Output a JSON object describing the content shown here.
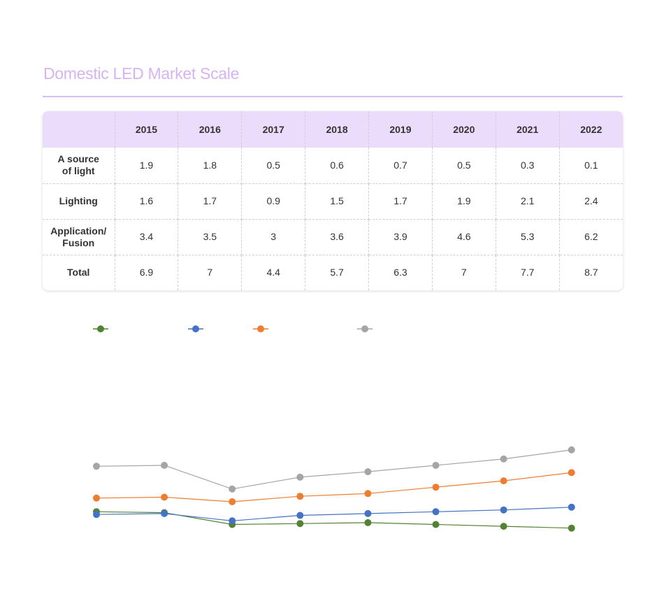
{
  "title": "Domestic LED Market Scale",
  "table": {
    "corner": "",
    "years": [
      "2015",
      "2016",
      "2017",
      "2018",
      "2019",
      "2020",
      "2021",
      "2022"
    ],
    "rows": [
      {
        "label": [
          "A source",
          "of light"
        ],
        "values": [
          "1.9",
          "1.8",
          "0.5",
          "0.6",
          "0.7",
          "0.5",
          "0.3",
          "0.1"
        ]
      },
      {
        "label": [
          "Lighting"
        ],
        "values": [
          "1.6",
          "1.7",
          "0.9",
          "1.5",
          "1.7",
          "1.9",
          "2.1",
          "2.4"
        ]
      },
      {
        "label": [
          "Application/",
          "Fusion"
        ],
        "values": [
          "3.4",
          "3.5",
          "3",
          "3.6",
          "3.9",
          "4.6",
          "5.3",
          "6.2"
        ]
      },
      {
        "label": [
          "Total"
        ],
        "values": [
          "6.9",
          "7",
          "4.4",
          "5.7",
          "6.3",
          "7",
          "7.7",
          "8.7"
        ]
      }
    ]
  },
  "chart_data": {
    "type": "line",
    "x": [
      2015,
      2016,
      2017,
      2018,
      2019,
      2020,
      2021,
      2022
    ],
    "series": [
      {
        "color": "#548235",
        "values": [
          1.9,
          1.8,
          0.5,
          0.6,
          0.7,
          0.5,
          0.3,
          0.1
        ]
      },
      {
        "color": "#4472c4",
        "values": [
          1.6,
          1.7,
          0.9,
          1.5,
          1.7,
          1.9,
          2.1,
          2.4
        ]
      },
      {
        "color": "#ed7d31",
        "values": [
          3.4,
          3.5,
          3,
          3.6,
          3.9,
          4.6,
          5.3,
          6.2
        ]
      },
      {
        "color": "#a5a5a5",
        "values": [
          6.9,
          7,
          4.4,
          5.7,
          6.3,
          7,
          7.7,
          8.7
        ]
      }
    ],
    "legend": "top",
    "grid": false
  }
}
